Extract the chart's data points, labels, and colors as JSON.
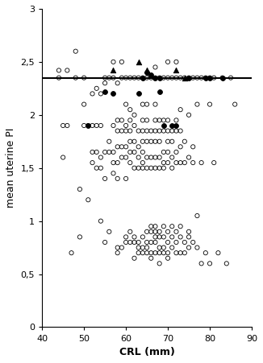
{
  "title": "",
  "xlabel": "CRL (mm)",
  "ylabel": "mean uterine PI",
  "xlim": [
    40,
    90
  ],
  "ylim": [
    0,
    3
  ],
  "xticks": [
    40,
    50,
    60,
    70,
    80,
    90
  ],
  "yticks": [
    0,
    0.5,
    1,
    1.5,
    2,
    2.5,
    3
  ],
  "ytick_labels": [
    "0",
    "0,5",
    "1",
    "1,5",
    "2",
    "2,5",
    "3"
  ],
  "threshold_line": 2.35,
  "open_circles": [
    [
      44,
      2.42
    ],
    [
      44,
      2.35
    ],
    [
      45,
      1.9
    ],
    [
      45,
      1.6
    ],
    [
      46,
      1.9
    ],
    [
      46,
      2.42
    ],
    [
      47,
      0.7
    ],
    [
      48,
      2.35
    ],
    [
      48,
      2.6
    ],
    [
      49,
      0.85
    ],
    [
      49,
      1.3
    ],
    [
      50,
      1.9
    ],
    [
      50,
      2.1
    ],
    [
      50,
      2.35
    ],
    [
      51,
      1.9
    ],
    [
      51,
      1.2
    ],
    [
      52,
      1.9
    ],
    [
      52,
      1.55
    ],
    [
      52,
      1.65
    ],
    [
      52,
      2.2
    ],
    [
      53,
      1.5
    ],
    [
      53,
      1.65
    ],
    [
      53,
      1.9
    ],
    [
      53,
      2.25
    ],
    [
      54,
      1.0
    ],
    [
      54,
      1.5
    ],
    [
      54,
      1.6
    ],
    [
      54,
      1.9
    ],
    [
      54,
      2.2
    ],
    [
      55,
      0.8
    ],
    [
      55,
      1.4
    ],
    [
      55,
      1.65
    ],
    [
      55,
      2.3
    ],
    [
      55,
      2.35
    ],
    [
      56,
      0.9
    ],
    [
      56,
      1.65
    ],
    [
      56,
      1.75
    ],
    [
      56,
      2.35
    ],
    [
      57,
      1.45
    ],
    [
      57,
      1.55
    ],
    [
      57,
      1.65
    ],
    [
      57,
      1.9
    ],
    [
      57,
      2.35
    ],
    [
      57,
      2.5
    ],
    [
      58,
      0.7
    ],
    [
      58,
      0.75
    ],
    [
      58,
      1.4
    ],
    [
      58,
      1.55
    ],
    [
      58,
      1.7
    ],
    [
      58,
      1.85
    ],
    [
      58,
      1.95
    ],
    [
      58,
      2.3
    ],
    [
      59,
      0.75
    ],
    [
      59,
      1.6
    ],
    [
      59,
      1.7
    ],
    [
      59,
      1.85
    ],
    [
      59,
      1.95
    ],
    [
      59,
      2.35
    ],
    [
      59,
      2.5
    ],
    [
      60,
      0.8
    ],
    [
      60,
      0.85
    ],
    [
      60,
      1.4
    ],
    [
      60,
      1.6
    ],
    [
      60,
      1.7
    ],
    [
      60,
      1.85
    ],
    [
      60,
      1.9
    ],
    [
      60,
      2.1
    ],
    [
      60,
      2.35
    ],
    [
      61,
      0.8
    ],
    [
      61,
      0.9
    ],
    [
      61,
      1.55
    ],
    [
      61,
      1.65
    ],
    [
      61,
      1.75
    ],
    [
      61,
      1.85
    ],
    [
      61,
      1.95
    ],
    [
      61,
      2.05
    ],
    [
      61,
      2.35
    ],
    [
      62,
      0.65
    ],
    [
      62,
      0.8
    ],
    [
      62,
      0.85
    ],
    [
      62,
      1.5
    ],
    [
      62,
      1.65
    ],
    [
      62,
      1.75
    ],
    [
      62,
      1.9
    ],
    [
      62,
      2.0
    ],
    [
      62,
      2.35
    ],
    [
      63,
      0.7
    ],
    [
      63,
      0.75
    ],
    [
      63,
      0.8
    ],
    [
      63,
      1.5
    ],
    [
      63,
      1.6
    ],
    [
      63,
      1.7
    ],
    [
      63,
      1.85
    ],
    [
      63,
      2.35
    ],
    [
      64,
      0.7
    ],
    [
      64,
      0.75
    ],
    [
      64,
      0.85
    ],
    [
      64,
      1.5
    ],
    [
      64,
      1.55
    ],
    [
      64,
      1.65
    ],
    [
      64,
      1.75
    ],
    [
      64,
      1.85
    ],
    [
      64,
      1.95
    ],
    [
      64,
      2.1
    ],
    [
      64,
      2.35
    ],
    [
      65,
      0.7
    ],
    [
      65,
      0.75
    ],
    [
      65,
      0.8
    ],
    [
      65,
      0.9
    ],
    [
      65,
      1.5
    ],
    [
      65,
      1.6
    ],
    [
      65,
      1.75
    ],
    [
      65,
      1.85
    ],
    [
      65,
      1.95
    ],
    [
      65,
      2.1
    ],
    [
      65,
      2.35
    ],
    [
      66,
      0.65
    ],
    [
      66,
      0.7
    ],
    [
      66,
      0.8
    ],
    [
      66,
      0.9
    ],
    [
      66,
      0.95
    ],
    [
      66,
      1.5
    ],
    [
      66,
      1.6
    ],
    [
      66,
      1.75
    ],
    [
      66,
      1.85
    ],
    [
      66,
      2.35
    ],
    [
      67,
      0.7
    ],
    [
      67,
      0.8
    ],
    [
      67,
      0.85
    ],
    [
      67,
      0.9
    ],
    [
      67,
      0.95
    ],
    [
      67,
      1.5
    ],
    [
      67,
      1.6
    ],
    [
      67,
      1.75
    ],
    [
      67,
      1.85
    ],
    [
      67,
      1.95
    ],
    [
      67,
      2.1
    ],
    [
      67,
      2.35
    ],
    [
      67,
      2.45
    ],
    [
      68,
      0.6
    ],
    [
      68,
      0.7
    ],
    [
      68,
      0.75
    ],
    [
      68,
      0.85
    ],
    [
      68,
      0.9
    ],
    [
      68,
      1.5
    ],
    [
      68,
      1.6
    ],
    [
      68,
      1.75
    ],
    [
      68,
      1.85
    ],
    [
      68,
      1.95
    ],
    [
      68,
      2.35
    ],
    [
      69,
      0.7
    ],
    [
      69,
      0.75
    ],
    [
      69,
      0.85
    ],
    [
      69,
      0.95
    ],
    [
      69,
      1.5
    ],
    [
      69,
      1.55
    ],
    [
      69,
      1.65
    ],
    [
      69,
      1.85
    ],
    [
      69,
      1.95
    ],
    [
      69,
      2.35
    ],
    [
      70,
      0.65
    ],
    [
      70,
      0.7
    ],
    [
      70,
      0.8
    ],
    [
      70,
      0.9
    ],
    [
      70,
      1.55
    ],
    [
      70,
      1.65
    ],
    [
      70,
      1.75
    ],
    [
      70,
      1.85
    ],
    [
      70,
      1.95
    ],
    [
      70,
      2.35
    ],
    [
      70,
      2.5
    ],
    [
      71,
      0.75
    ],
    [
      71,
      0.85
    ],
    [
      71,
      0.95
    ],
    [
      71,
      1.5
    ],
    [
      71,
      1.6
    ],
    [
      71,
      1.75
    ],
    [
      71,
      1.85
    ],
    [
      71,
      2.35
    ],
    [
      72,
      0.7
    ],
    [
      72,
      0.8
    ],
    [
      72,
      0.9
    ],
    [
      72,
      1.55
    ],
    [
      72,
      1.65
    ],
    [
      72,
      1.85
    ],
    [
      72,
      1.95
    ],
    [
      72,
      2.35
    ],
    [
      72,
      2.5
    ],
    [
      73,
      0.7
    ],
    [
      73,
      0.85
    ],
    [
      73,
      0.95
    ],
    [
      73,
      1.55
    ],
    [
      73,
      1.7
    ],
    [
      73,
      1.85
    ],
    [
      73,
      2.05
    ],
    [
      73,
      2.35
    ],
    [
      74,
      0.7
    ],
    [
      74,
      0.8
    ],
    [
      74,
      1.55
    ],
    [
      74,
      1.75
    ],
    [
      74,
      2.35
    ],
    [
      75,
      0.75
    ],
    [
      75,
      0.85
    ],
    [
      75,
      0.9
    ],
    [
      75,
      1.6
    ],
    [
      75,
      2.0
    ],
    [
      75,
      2.35
    ],
    [
      76,
      0.8
    ],
    [
      76,
      1.55
    ],
    [
      76,
      1.7
    ],
    [
      76,
      2.35
    ],
    [
      77,
      0.75
    ],
    [
      77,
      1.05
    ],
    [
      77,
      2.1
    ],
    [
      77,
      2.35
    ],
    [
      78,
      0.6
    ],
    [
      78,
      1.55
    ],
    [
      78,
      2.35
    ],
    [
      79,
      0.7
    ],
    [
      79,
      2.35
    ],
    [
      80,
      0.6
    ],
    [
      80,
      2.35
    ],
    [
      80,
      2.1
    ],
    [
      81,
      1.55
    ],
    [
      81,
      2.35
    ],
    [
      82,
      0.7
    ],
    [
      83,
      2.35
    ],
    [
      84,
      0.6
    ],
    [
      85,
      2.35
    ],
    [
      86,
      2.1
    ]
  ],
  "filled_circles": [
    [
      51,
      1.9
    ],
    [
      55,
      2.22
    ],
    [
      57,
      2.2
    ],
    [
      63,
      2.2
    ],
    [
      64,
      2.35
    ],
    [
      65,
      2.4
    ],
    [
      66,
      2.38
    ],
    [
      67,
      2.35
    ],
    [
      68,
      2.22
    ],
    [
      68,
      2.35
    ],
    [
      69,
      1.9
    ],
    [
      71,
      1.9
    ],
    [
      72,
      1.9
    ],
    [
      75,
      2.35
    ],
    [
      79,
      2.35
    ],
    [
      80,
      2.35
    ],
    [
      83,
      2.35
    ]
  ],
  "filled_triangles": [
    [
      57,
      2.42
    ],
    [
      63,
      2.5
    ],
    [
      65,
      2.42
    ],
    [
      72,
      2.42
    ],
    [
      74,
      2.35
    ]
  ],
  "marker_size_open": 14,
  "marker_size_filled": 18,
  "marker_size_triangle": 22,
  "line_color": "#000000",
  "line_width": 1.5,
  "figsize": [
    3.26,
    4.51
  ],
  "dpi": 100
}
